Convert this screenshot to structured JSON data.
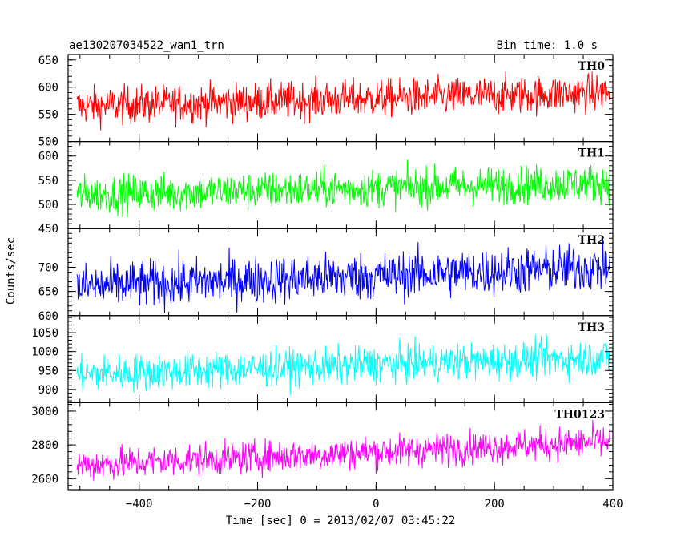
{
  "header": {
    "title": "ae130207034522_wam1_trn",
    "bin_time": "Bin time: 1.0 s"
  },
  "chart_data": {
    "type": "line",
    "xlabel": "Time [sec] 0 = 2013/02/07 03:45:22",
    "ylabel": "Counts/sec",
    "xlim": [
      -520,
      400
    ],
    "x_ticks": [
      -400,
      -200,
      0,
      200,
      400
    ],
    "x_tick_labels": [
      "−400",
      "−200",
      "0",
      "200",
      "400"
    ],
    "bin_time": 1.0,
    "panels": [
      {
        "name": "TH0",
        "color": "#ff0000",
        "ylim": [
          500,
          660
        ],
        "y_ticks": [
          500,
          550,
          600,
          650
        ],
        "y_tick_labels": [
          "500",
          "550",
          "600",
          "650"
        ],
        "x_range": [
          -505,
          395
        ],
        "trend": [
          565,
          590
        ],
        "noise": 25
      },
      {
        "name": "TH1",
        "color": "#00ff00",
        "ylim": [
          450,
          630
        ],
        "y_ticks": [
          450,
          500,
          550,
          600
        ],
        "y_tick_labels": [
          "450",
          "500",
          "550",
          "600"
        ],
        "x_range": [
          -505,
          395
        ],
        "trend": [
          520,
          545
        ],
        "noise": 28
      },
      {
        "name": "TH2",
        "color": "#0000ff",
        "ylim": [
          600,
          780
        ],
        "y_ticks": [
          600,
          650,
          700
        ],
        "y_tick_labels": [
          "600",
          "650",
          "700"
        ],
        "x_range": [
          -505,
          395
        ],
        "trend": [
          660,
          700
        ],
        "noise": 35
      },
      {
        "name": "TH3",
        "color": "#00ffff",
        "ylim": [
          865,
          1095
        ],
        "y_ticks": [
          900,
          950,
          1000,
          1050
        ],
        "y_tick_labels": [
          "900",
          "950",
          "1000",
          "1050"
        ],
        "x_range": [
          -505,
          395
        ],
        "trend": [
          940,
          985
        ],
        "noise": 35
      },
      {
        "name": "TH0123",
        "color": "#ff00ff",
        "ylim": [
          2535,
          3050
        ],
        "y_ticks": [
          2600,
          2800,
          3000
        ],
        "y_tick_labels": [
          "2600",
          "2800",
          "3000"
        ],
        "x_range": [
          -505,
          395
        ],
        "trend": [
          2680,
          2820
        ],
        "noise": 70
      }
    ]
  }
}
